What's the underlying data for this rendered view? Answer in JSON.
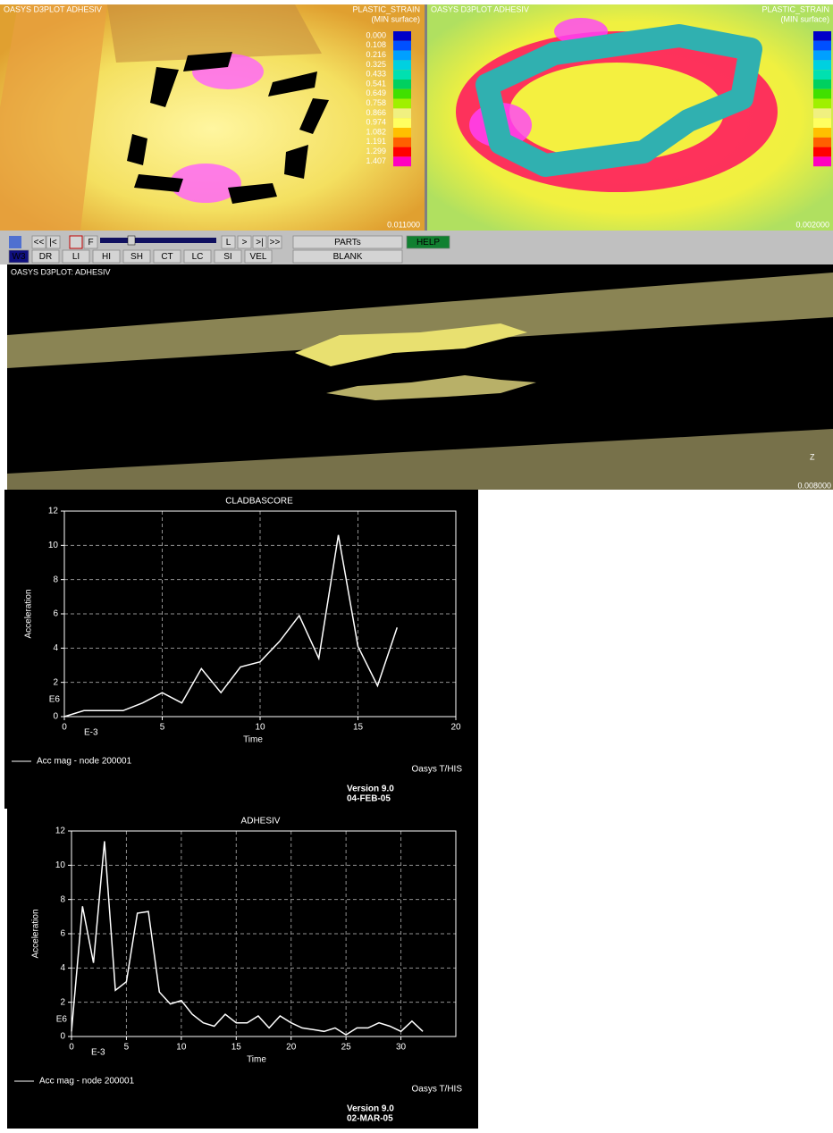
{
  "views": [
    {
      "title": "OASYS D3PLOT ADHESIV",
      "quantity": "PLASTIC_STRAIN",
      "surface": "(MIN surface)",
      "legend": [
        "0.000",
        "0.108",
        "0.216",
        "0.325",
        "0.433",
        "0.541",
        "0.649",
        "0.758",
        "0.866",
        "0.974",
        "1.082",
        "1.191",
        "1.299",
        "1.407"
      ],
      "time": "0.011000"
    },
    {
      "title": "OASYS D3PLOT ADHESIV",
      "quantity": "PLASTIC_STRAIN",
      "surface": "(MIN surface)",
      "time": "0.002000"
    }
  ],
  "toolbar": {
    "playback": [
      "<<",
      "|<",
      "F",
      "L",
      ">",
      ">|",
      ">>"
    ],
    "modes": [
      "W3",
      "DR",
      "LI",
      "HI",
      "SH",
      "CT",
      "LC",
      "SI",
      "VEL"
    ],
    "menus": [
      "PARTs",
      "BLANK"
    ],
    "help": "HELP"
  },
  "main_view": {
    "title": "OASYS D3PLOT: ADHESIV",
    "axis": "Z",
    "time": "0.008000"
  },
  "chart_data": [
    {
      "type": "line",
      "title": "CLADBASCORE",
      "xlabel": "Time",
      "ylabel": "Acceleration",
      "x_multiplier": "E-3",
      "y_multiplier": "E6",
      "x": [
        0,
        1,
        3,
        4,
        5,
        6,
        7,
        8,
        9,
        10,
        11,
        12,
        13,
        14,
        15,
        16,
        17
      ],
      "series": [
        {
          "name": "Acc mag - node 200001",
          "color": "#ffffff",
          "values": [
            0,
            0.35,
            0.35,
            0.8,
            1.4,
            0.8,
            2.8,
            1.4,
            2.9,
            3.2,
            4.4,
            5.9,
            3.4,
            10.6,
            4.1,
            1.8,
            5.2
          ]
        }
      ],
      "xlim": [
        0,
        20
      ],
      "ylim": [
        0,
        12
      ],
      "xticks": [
        0,
        5,
        10,
        15,
        20
      ],
      "yticks": [
        0,
        2,
        4,
        6,
        8,
        10,
        12
      ],
      "grid": true,
      "brand": "Oasys T/HIS",
      "version": "Version 9.0",
      "date": "04-FEB-05"
    },
    {
      "type": "line",
      "title": "ADHESIV",
      "xlabel": "Time",
      "ylabel": "Acceleration",
      "x_multiplier": "E-3",
      "y_multiplier": "E6",
      "x": [
        0,
        1,
        2,
        3,
        4,
        5,
        6,
        7,
        8,
        9,
        10,
        11,
        12,
        13,
        14,
        15,
        16,
        17,
        18,
        19,
        20,
        21,
        22,
        23,
        24,
        25,
        26,
        27,
        28,
        29,
        30,
        31,
        32
      ],
      "series": [
        {
          "name": "Acc mag - node 200001",
          "color": "#ffffff",
          "values": [
            0.3,
            7.6,
            4.3,
            11.4,
            2.7,
            3.2,
            7.2,
            7.3,
            2.6,
            1.9,
            2.1,
            1.3,
            0.8,
            0.6,
            1.3,
            0.8,
            0.8,
            1.2,
            0.5,
            1.2,
            0.8,
            0.5,
            0.4,
            0.3,
            0.5,
            0.1,
            0.5,
            0.5,
            0.8,
            0.6,
            0.3,
            0.9,
            0.3
          ]
        }
      ],
      "xlim": [
        0,
        35
      ],
      "ylim": [
        0,
        12
      ],
      "xticks": [
        0,
        5,
        10,
        15,
        20,
        25,
        30
      ],
      "yticks": [
        0,
        2,
        4,
        6,
        8,
        10,
        12
      ],
      "grid": true,
      "brand": "Oasys T/HIS",
      "version": "Version 9.0",
      "date": "02-MAR-05"
    }
  ]
}
